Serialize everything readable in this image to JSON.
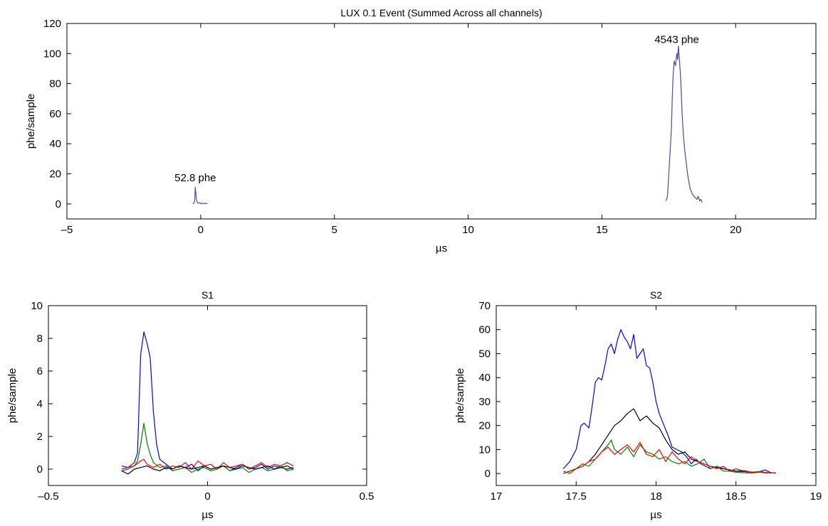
{
  "chart_data": [
    {
      "id": "overview",
      "type": "line",
      "title": "LUX 0.1 Event (Summed Across all channels)",
      "xlabel": "µs",
      "ylabel": "phe/sample",
      "xlim": [
        -5,
        23
      ],
      "ylim": [
        -10,
        120
      ],
      "xticks": [
        -5,
        0,
        5,
        10,
        15,
        20
      ],
      "yticks": [
        0,
        20,
        40,
        60,
        80,
        100,
        120
      ],
      "grid": false,
      "annotations": [
        {
          "text": "52.8 phe",
          "x": -0.2,
          "y": 15
        },
        {
          "text": "4543 phe",
          "x": 17.8,
          "y": 107
        }
      ],
      "series": [
        {
          "color": "#4a4aa8",
          "points": [
            [
              -0.3,
              0.2
            ],
            [
              -0.25,
              0.5
            ],
            [
              -0.22,
              3
            ],
            [
              -0.2,
              11
            ],
            [
              -0.18,
              7
            ],
            [
              -0.15,
              2
            ],
            [
              -0.1,
              0.4
            ],
            [
              -0.05,
              0.8
            ],
            [
              0.0,
              0.2
            ],
            [
              0.05,
              0.5
            ],
            [
              0.1,
              0.1
            ],
            [
              0.15,
              0.4
            ],
            [
              0.2,
              0.3
            ],
            [
              0.25,
              0.2
            ]
          ],
          "segments": [
            [
              [
                17.4,
                2
              ],
              [
                17.45,
                5
              ],
              [
                17.5,
                20
              ],
              [
                17.55,
                35
              ],
              [
                17.6,
                50
              ],
              [
                17.63,
                70
              ],
              [
                17.66,
                85
              ],
              [
                17.7,
                95
              ],
              [
                17.75,
                92
              ],
              [
                17.8,
                100
              ],
              [
                17.83,
                96
              ],
              [
                17.86,
                105
              ],
              [
                17.9,
                95
              ],
              [
                17.93,
                88
              ],
              [
                17.96,
                78
              ],
              [
                18.0,
                60
              ],
              [
                18.05,
                45
              ],
              [
                18.1,
                35
              ],
              [
                18.15,
                28
              ],
              [
                18.2,
                20
              ],
              [
                18.25,
                15
              ],
              [
                18.3,
                10
              ],
              [
                18.35,
                8
              ],
              [
                18.4,
                6
              ],
              [
                18.45,
                5
              ],
              [
                18.5,
                4
              ],
              [
                18.55,
                3
              ],
              [
                18.6,
                5
              ],
              [
                18.65,
                2
              ],
              [
                18.7,
                3
              ],
              [
                18.75,
                1
              ]
            ]
          ]
        }
      ]
    },
    {
      "id": "s1",
      "type": "line",
      "title": "S1",
      "xlabel": "µs",
      "ylabel": "phe/sample",
      "xlim": [
        -0.5,
        0.5
      ],
      "ylim": [
        -1,
        10
      ],
      "xticks": [
        -0.5,
        0,
        0.5
      ],
      "yticks": [
        0,
        2,
        4,
        6,
        8,
        10
      ],
      "grid": false,
      "series": [
        {
          "color": "#0000ff",
          "x": [
            -0.27,
            -0.25,
            -0.23,
            -0.22,
            -0.21,
            -0.2,
            -0.19,
            -0.18,
            -0.17,
            -0.16,
            -0.15,
            -0.13,
            -0.11,
            -0.09,
            -0.07,
            -0.05,
            -0.03,
            -0.01,
            0.01,
            0.03,
            0.05,
            0.07,
            0.09,
            0.11,
            0.13,
            0.15,
            0.17,
            0.19,
            0.21,
            0.23,
            0.25,
            0.27
          ],
          "y": [
            0.2,
            0.1,
            0.4,
            1.0,
            7.0,
            8.4,
            7.7,
            6.8,
            3.5,
            1.5,
            0.6,
            0.3,
            0.0,
            0.2,
            0.1,
            0.3,
            -0.1,
            0.2,
            0.0,
            0.1,
            0.2,
            -0.1,
            0.1,
            0.3,
            0.0,
            0.1,
            0.3,
            0.0,
            0.2,
            0.1,
            0.0,
            0.1
          ]
        },
        {
          "color": "#008000",
          "x": [
            -0.27,
            -0.25,
            -0.23,
            -0.22,
            -0.21,
            -0.2,
            -0.19,
            -0.18,
            -0.17,
            -0.15,
            -0.13,
            -0.11,
            -0.09,
            -0.07,
            -0.05,
            -0.03,
            -0.01,
            0.01,
            0.03,
            0.05,
            0.07,
            0.09,
            0.11,
            0.13,
            0.15,
            0.17,
            0.19,
            0.21,
            0.23,
            0.25,
            0.27
          ],
          "y": [
            -0.1,
            0.0,
            0.2,
            0.5,
            1.5,
            2.8,
            1.6,
            0.9,
            0.4,
            0.1,
            0.2,
            -0.1,
            0.0,
            0.1,
            -0.2,
            0.0,
            0.1,
            -0.1,
            0.0,
            0.2,
            -0.1,
            0.0,
            0.1,
            -0.2,
            0.0,
            0.1,
            -0.1,
            0.0,
            0.2,
            -0.1,
            0.0
          ]
        },
        {
          "color": "#ff0000",
          "x": [
            -0.27,
            -0.25,
            -0.23,
            -0.21,
            -0.2,
            -0.19,
            -0.17,
            -0.15,
            -0.13,
            -0.11,
            -0.09,
            -0.07,
            -0.05,
            -0.03,
            -0.01,
            0.01,
            0.03,
            0.05,
            0.07,
            0.09,
            0.11,
            0.13,
            0.15,
            0.17,
            0.19,
            0.21,
            0.23,
            0.25,
            0.27
          ],
          "y": [
            0.0,
            0.1,
            0.2,
            0.5,
            0.6,
            0.3,
            0.1,
            0.3,
            0.0,
            0.2,
            0.1,
            0.4,
            0.0,
            0.5,
            0.2,
            0.3,
            0.0,
            0.4,
            0.1,
            0.2,
            0.3,
            0.0,
            0.2,
            0.4,
            0.1,
            0.3,
            0.2,
            0.4,
            0.2
          ]
        },
        {
          "color": "#000000",
          "x": [
            -0.27,
            -0.25,
            -0.23,
            -0.21,
            -0.19,
            -0.17,
            -0.15,
            -0.13,
            -0.11,
            -0.09,
            -0.07,
            -0.05,
            -0.03,
            -0.01,
            0.01,
            0.03,
            0.05,
            0.07,
            0.09,
            0.11,
            0.13,
            0.15,
            0.17,
            0.19,
            0.21,
            0.23,
            0.25,
            0.27
          ],
          "y": [
            -0.1,
            -0.3,
            0.0,
            0.1,
            0.2,
            0.0,
            -0.1,
            0.1,
            0.0,
            0.2,
            0.1,
            0.0,
            0.1,
            0.2,
            0.0,
            0.1,
            0.2,
            0.1,
            0.0,
            0.2,
            0.1,
            0.0,
            0.1,
            0.2,
            0.0,
            0.1,
            0.2,
            0.0
          ]
        }
      ]
    },
    {
      "id": "s2",
      "type": "line",
      "title": "S2",
      "xlabel": "µs",
      "ylabel": "phe/sample",
      "xlim": [
        17,
        19
      ],
      "ylim": [
        -5,
        70
      ],
      "xticks": [
        17,
        17.5,
        18,
        18.5,
        19
      ],
      "yticks": [
        0,
        10,
        20,
        30,
        40,
        50,
        60,
        70
      ],
      "grid": false,
      "series": [
        {
          "color": "#0000ff",
          "x": [
            17.42,
            17.46,
            17.5,
            17.53,
            17.55,
            17.58,
            17.6,
            17.62,
            17.64,
            17.66,
            17.68,
            17.7,
            17.72,
            17.74,
            17.76,
            17.78,
            17.8,
            17.82,
            17.84,
            17.86,
            17.88,
            17.9,
            17.92,
            17.94,
            17.96,
            17.98,
            18.0,
            18.02,
            18.05,
            18.08,
            18.1,
            18.13,
            18.16,
            18.19,
            18.22,
            18.25,
            18.28,
            18.31,
            18.34,
            18.38,
            18.42,
            18.46,
            18.5,
            18.55,
            18.6,
            18.65,
            18.68,
            18.72,
            18.75
          ],
          "y": [
            2,
            5,
            10,
            20,
            21,
            19,
            28,
            38,
            40,
            39,
            45,
            52,
            54,
            50,
            56,
            60,
            57,
            55,
            52,
            58,
            48,
            50,
            52,
            45,
            44,
            38,
            30,
            25,
            20,
            15,
            11,
            10,
            9,
            7,
            4,
            6,
            4,
            3,
            2,
            3,
            2,
            1.5,
            1,
            1.2,
            0.5,
            0.8,
            1.5,
            0.3,
            0.2
          ]
        },
        {
          "color": "#000000",
          "x": [
            17.42,
            17.46,
            17.5,
            17.54,
            17.58,
            17.62,
            17.66,
            17.7,
            17.74,
            17.78,
            17.82,
            17.86,
            17.9,
            17.94,
            17.98,
            18.02,
            18.06,
            18.1,
            18.14,
            18.18,
            18.22,
            18.26,
            18.3,
            18.34,
            18.38,
            18.42,
            18.46,
            18.5,
            18.55,
            18.6,
            18.65,
            18.7,
            18.75
          ],
          "y": [
            0,
            1,
            2,
            3,
            5,
            8,
            12,
            16,
            20,
            22,
            25,
            27,
            22,
            24,
            21,
            19,
            14,
            10,
            8,
            9,
            6,
            5,
            4,
            3,
            2.5,
            2,
            1.5,
            1,
            0.8,
            0.5,
            0.5,
            0.3,
            0.2
          ]
        },
        {
          "color": "#008000",
          "x": [
            17.42,
            17.46,
            17.5,
            17.54,
            17.58,
            17.62,
            17.66,
            17.7,
            17.72,
            17.74,
            17.78,
            17.82,
            17.86,
            17.9,
            17.94,
            17.98,
            18.02,
            18.06,
            18.1,
            18.14,
            18.18,
            18.22,
            18.26,
            18.3,
            18.34,
            18.38,
            18.42,
            18.46,
            18.5,
            18.55,
            18.6,
            18.65,
            18.7
          ],
          "y": [
            0,
            1,
            2,
            4,
            3,
            6,
            9,
            12,
            14,
            10,
            8,
            11,
            7,
            12,
            9,
            8,
            6,
            7,
            5,
            4,
            5,
            3,
            4,
            6,
            2,
            3,
            1,
            1,
            0.5,
            0.3,
            0.2,
            0.5,
            0.1
          ]
        },
        {
          "color": "#ff0000",
          "x": [
            17.42,
            17.46,
            17.5,
            17.54,
            17.58,
            17.62,
            17.66,
            17.7,
            17.74,
            17.78,
            17.82,
            17.86,
            17.9,
            17.94,
            17.98,
            18.02,
            18.06,
            18.1,
            18.14,
            18.18,
            18.22,
            18.26,
            18.3,
            18.34,
            18.38,
            18.42,
            18.46,
            18.5,
            18.55,
            18.6,
            18.65,
            18.7,
            18.75
          ],
          "y": [
            1,
            0,
            2,
            3,
            5,
            6,
            9,
            11,
            8,
            10,
            12,
            9,
            13,
            8,
            7,
            10,
            5,
            9,
            6,
            4,
            7,
            5,
            4,
            3,
            2,
            3,
            1,
            2,
            1,
            0.5,
            0.8,
            0.3,
            0.2
          ]
        }
      ]
    }
  ]
}
